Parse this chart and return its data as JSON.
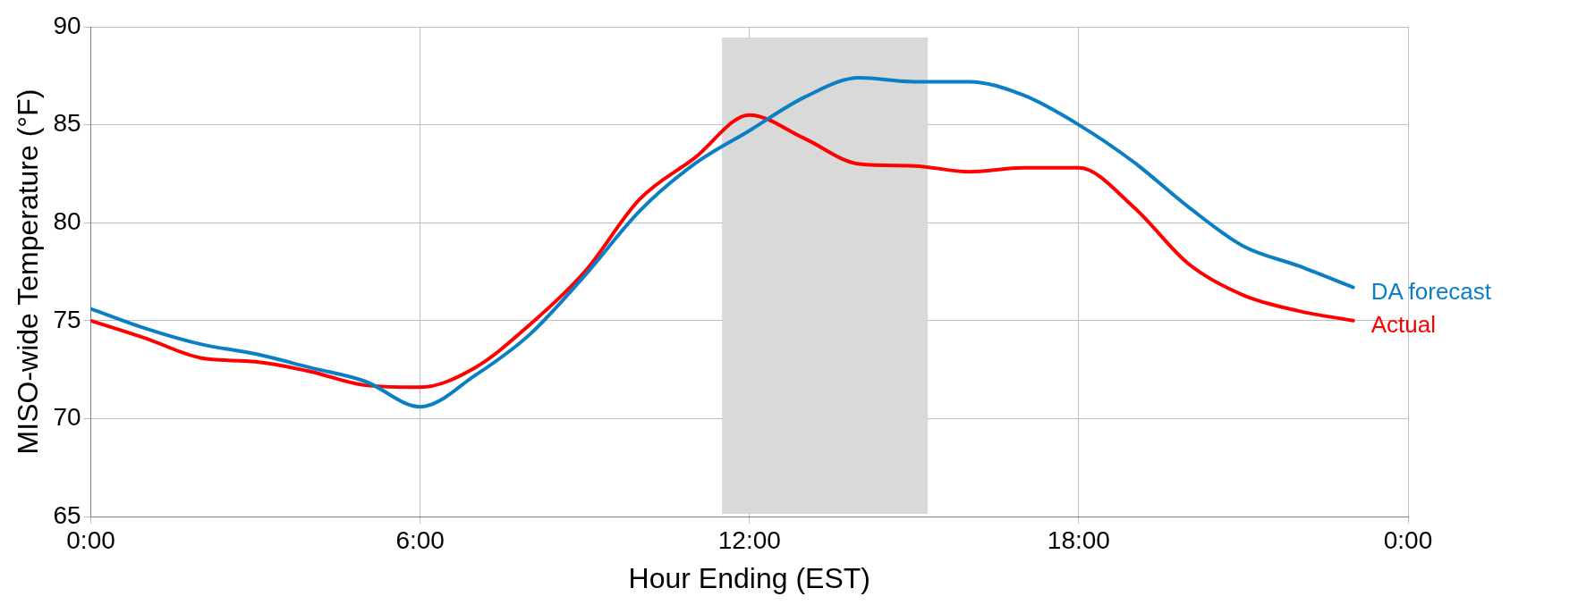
{
  "chart_data": {
    "type": "line",
    "xlabel": "Hour Ending (EST)",
    "ylabel": "MISO-wide Temperature (°F)",
    "x": [
      0,
      1,
      2,
      3,
      4,
      5,
      6,
      7,
      8,
      9,
      10,
      11,
      12,
      13,
      14,
      15,
      16,
      17,
      18,
      19,
      20,
      21,
      22,
      23
    ],
    "series": [
      {
        "name": "DA forecast",
        "color": "#0a7fc4",
        "values": [
          75.6,
          74.6,
          73.8,
          73.3,
          72.6,
          71.9,
          70.6,
          72.2,
          74.3,
          77.3,
          80.6,
          83.0,
          84.7,
          86.4,
          87.4,
          87.2,
          87.2,
          86.5,
          85.0,
          83.1,
          80.8,
          78.8,
          77.8,
          76.7
        ]
      },
      {
        "name": "Actual",
        "color": "#ff0000",
        "values": [
          75.0,
          74.1,
          73.1,
          72.9,
          72.4,
          71.7,
          71.6,
          72.6,
          74.8,
          77.5,
          81.2,
          83.3,
          85.5,
          84.3,
          83.0,
          82.9,
          82.6,
          82.8,
          82.8,
          80.8,
          77.9,
          76.3,
          75.5,
          75.0
        ]
      }
    ],
    "xlim": [
      0,
      24
    ],
    "xticks": [
      {
        "value": 0,
        "label": "0:00"
      },
      {
        "value": 6,
        "label": "6:00"
      },
      {
        "value": 12,
        "label": "12:00"
      },
      {
        "value": 18,
        "label": "18:00"
      },
      {
        "value": 24,
        "label": "0:00"
      }
    ],
    "ylim": [
      65,
      90
    ],
    "yticks": [
      65,
      70,
      75,
      80,
      85,
      90
    ],
    "bands": [
      {
        "axis": "x",
        "from": 11.5,
        "to": 15.25,
        "color": "#d9d9d9"
      }
    ],
    "grid": true,
    "legend": false,
    "marker": "none",
    "line_style": "solid"
  }
}
